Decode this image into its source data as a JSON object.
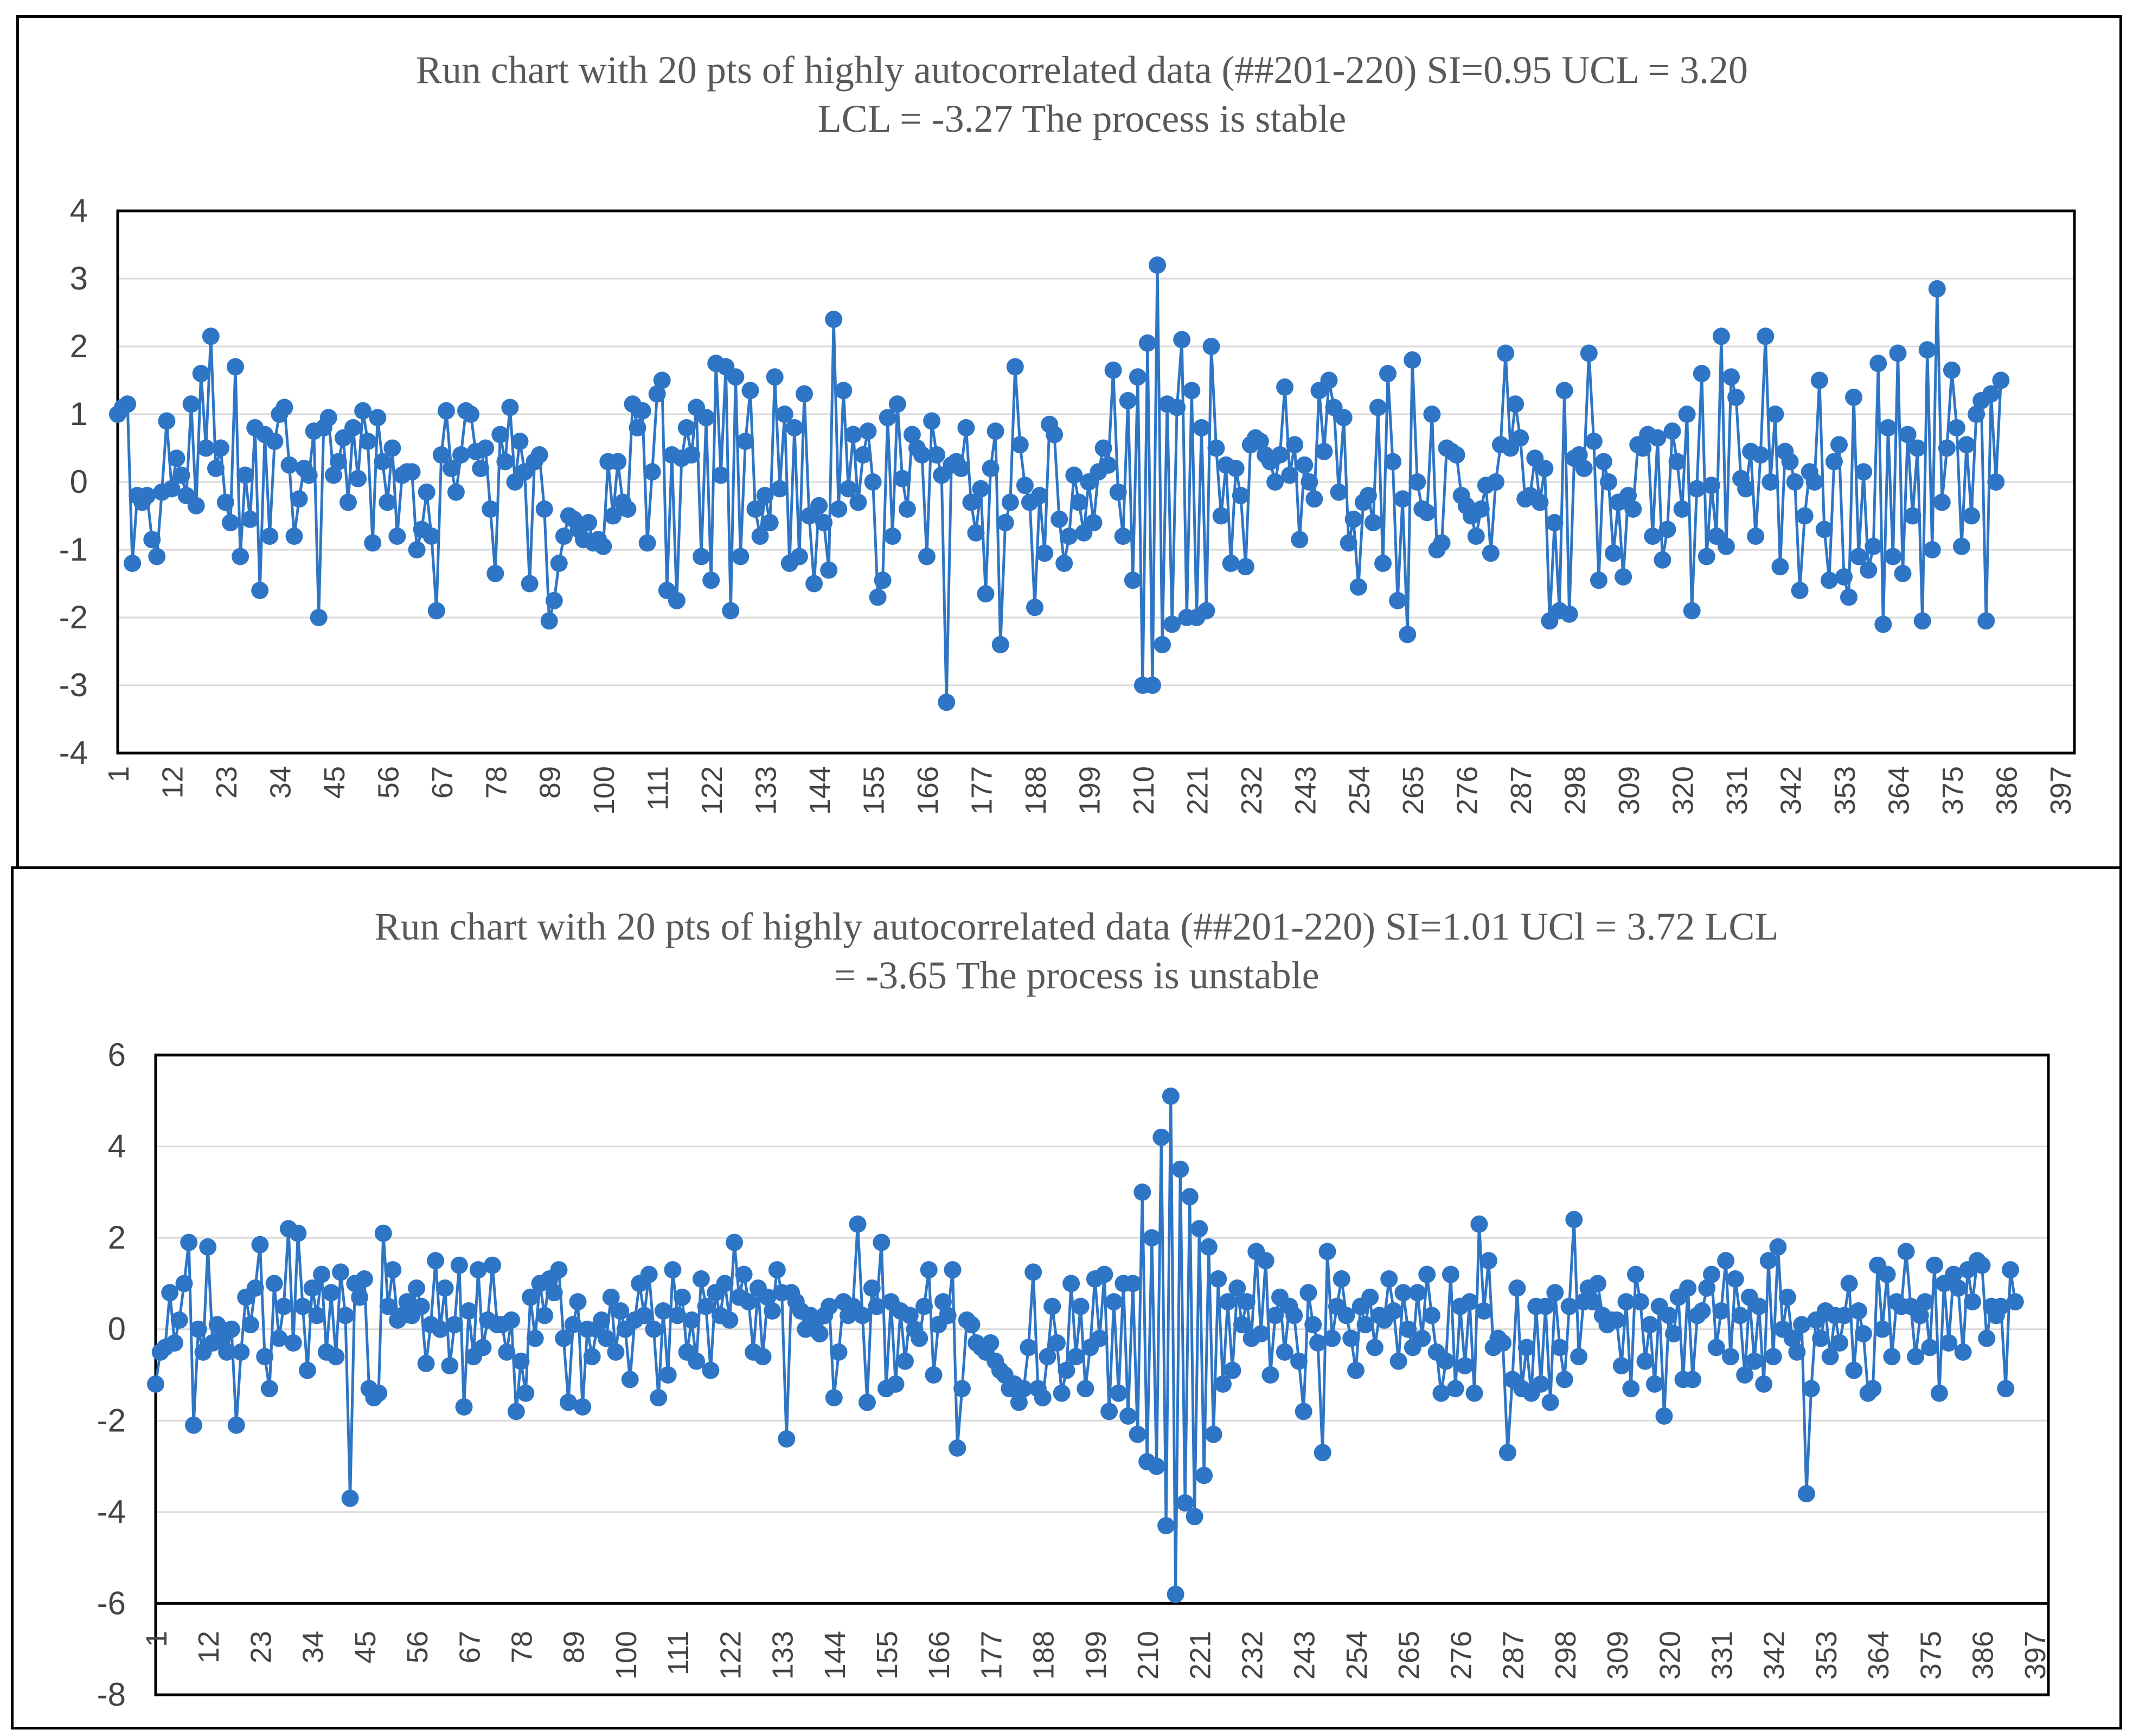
{
  "colors": {
    "series": "#2E75C6",
    "grid": "#d9d9d9",
    "frame": "#000000",
    "text": "#595959"
  },
  "chart_data": [
    {
      "type": "line",
      "title_lines": [
        "Run chart with 20 pts of highly  autocorrelated data (##201-220) SI=0.95 UCL = 3.20",
        "LCL = -3.27 The process is stable"
      ],
      "ylim": [
        -4,
        4
      ],
      "yticks": [
        4,
        3,
        2,
        1,
        0,
        -1,
        -2,
        -3,
        -4
      ],
      "xlim": [
        1,
        400
      ],
      "xticks": [
        1,
        12,
        23,
        34,
        45,
        56,
        67,
        78,
        89,
        100,
        111,
        122,
        133,
        144,
        155,
        166,
        177,
        188,
        199,
        210,
        221,
        232,
        243,
        254,
        265,
        276,
        287,
        298,
        309,
        320,
        331,
        342,
        353,
        364,
        375,
        386,
        397
      ],
      "grid": true,
      "marker": "circle",
      "series": [
        {
          "name": "",
          "values": [
            1.0,
            1.1,
            1.15,
            -1.2,
            -0.2,
            -0.3,
            -0.2,
            -0.85,
            -1.1,
            -0.15,
            0.9,
            -0.1,
            0.35,
            0.1,
            -0.2,
            1.15,
            -0.35,
            1.6,
            0.5,
            2.15,
            0.2,
            0.5,
            -0.3,
            -0.6,
            1.7,
            -1.1,
            0.1,
            -0.55,
            0.8,
            -1.6,
            0.7,
            -0.8,
            0.6,
            1.0,
            1.1,
            0.25,
            -0.8,
            -0.25,
            0.2,
            0.1,
            0.75,
            -2.0,
            0.8,
            0.95,
            0.1,
            0.3,
            0.65,
            -0.3,
            0.8,
            0.05,
            1.05,
            0.6,
            -0.9,
            0.95,
            0.3,
            -0.3,
            0.5,
            -0.8,
            0.1,
            0.15,
            0.15,
            -1.0,
            -0.7,
            -0.15,
            -0.8,
            -1.9,
            0.4,
            1.05,
            0.2,
            -0.15,
            0.4,
            1.05,
            1.0,
            0.45,
            0.2,
            0.5,
            -0.4,
            -1.35,
            0.7,
            0.3,
            1.1,
            0.0,
            0.6,
            0.15,
            -1.5,
            0.3,
            0.4,
            -0.4,
            -2.05,
            -1.75,
            -1.2,
            -0.8,
            -0.5,
            -0.55,
            -0.7,
            -0.85,
            -0.6,
            -0.9,
            -0.85,
            -0.95,
            0.3,
            -0.5,
            0.3,
            -0.3,
            -0.4,
            1.15,
            0.8,
            1.05,
            -0.9,
            0.15,
            1.3,
            1.5,
            -1.6,
            0.4,
            -1.75,
            0.35,
            0.8,
            0.4,
            1.1,
            -1.1,
            0.95,
            -1.45,
            1.75,
            0.1,
            1.7,
            -1.9,
            1.55,
            -1.1,
            0.6,
            1.35,
            -0.4,
            -0.8,
            -0.2,
            -0.6,
            1.55,
            -0.1,
            1.0,
            -1.2,
            0.8,
            -1.1,
            1.3,
            -0.5,
            -1.5,
            -0.35,
            -0.6,
            -1.3,
            2.4,
            -0.4,
            1.35,
            -0.1,
            0.7,
            -0.3,
            0.4,
            0.75,
            0.0,
            -1.7,
            -1.45,
            0.95,
            -0.8,
            1.15,
            0.05,
            -0.4,
            0.7,
            0.5,
            0.4,
            -1.1,
            0.9,
            0.4,
            0.1,
            -3.25,
            0.25,
            0.3,
            0.2,
            0.8,
            -0.3,
            -0.75,
            -0.1,
            -1.65,
            0.2,
            0.75,
            -2.4,
            -0.6,
            -0.3,
            1.7,
            0.55,
            -0.05,
            -0.3,
            -1.85,
            -0.2,
            -1.05,
            0.85,
            0.7,
            -0.55,
            -1.2,
            -0.8,
            0.1,
            -0.3,
            -0.75,
            0.0,
            -0.6,
            0.15,
            0.5,
            0.25,
            1.65,
            -0.15,
            -0.8,
            1.2,
            -1.45,
            1.55,
            -3.0,
            2.05,
            -3.0,
            3.2,
            -2.4,
            1.15,
            -2.1,
            1.1,
            2.1,
            -2.0,
            1.35,
            -2.0,
            0.8,
            -1.9,
            2.0,
            0.5,
            -0.5,
            0.25,
            -1.2,
            0.2,
            -0.2,
            -1.25,
            0.55,
            0.65,
            0.6,
            0.4,
            0.3,
            0.0,
            0.4,
            1.4,
            0.1,
            0.55,
            -0.85,
            0.25,
            0.0,
            -0.25,
            1.35,
            0.45,
            1.5,
            1.1,
            -0.15,
            0.95,
            -0.9,
            -0.55,
            -1.55,
            -0.3,
            -0.2,
            -0.6,
            1.1,
            -1.2,
            1.6,
            0.3,
            -1.75,
            -0.25,
            -2.25,
            1.8,
            0.0,
            -0.4,
            -0.45,
            1.0,
            -1.0,
            -0.9,
            0.5,
            0.45,
            0.4,
            -0.2,
            -0.35,
            -0.5,
            -0.8,
            -0.4,
            -0.05,
            -1.05,
            0.0,
            0.55,
            1.9,
            0.5,
            1.15,
            0.65,
            -0.25,
            -0.2,
            0.35,
            -0.3,
            0.2,
            -2.05,
            -0.6,
            -1.9,
            1.35,
            -1.95,
            0.35,
            0.4,
            0.2,
            1.9,
            0.6,
            -1.45,
            0.3,
            0.0,
            -1.05,
            -0.3,
            -1.4,
            -0.2,
            -0.4,
            0.55,
            0.5,
            0.7,
            -0.8,
            0.65,
            -1.15,
            -0.7,
            0.75,
            0.3,
            -0.4,
            1.0,
            -1.9,
            -0.1,
            1.6,
            -1.1,
            -0.05,
            -0.8,
            2.15,
            -0.95,
            1.55,
            1.25,
            0.05,
            -0.1,
            0.45,
            -0.8,
            0.4,
            2.15,
            0.0,
            1.0,
            -1.25,
            0.45,
            0.3,
            0.0,
            -1.6,
            -0.5,
            0.15,
            0.0,
            1.5,
            -0.7,
            -1.45,
            0.3,
            0.55,
            -1.4,
            -1.7,
            1.25,
            -1.1,
            0.15,
            -1.3,
            -0.95,
            1.75,
            -2.1,
            0.8,
            -1.1,
            1.9,
            -1.35,
            0.7,
            -0.5,
            0.5,
            -2.05,
            1.95,
            -1.0,
            2.85,
            -0.3,
            0.5,
            1.65,
            0.8,
            -0.95,
            0.55,
            -0.5,
            1.0,
            1.2,
            -2.05,
            1.3,
            0.0,
            1.5
          ]
        }
      ]
    },
    {
      "type": "line",
      "title_lines": [
        "Run chart with 20 pts of highly  autocorrelated data (##201-220) SI=1.01 UCl = 3.72   LCL",
        "= -3.65 The process is unstable"
      ],
      "ylim": [
        -8,
        6
      ],
      "yticks": [
        6,
        4,
        2,
        0,
        -2,
        -4,
        -6,
        -8
      ],
      "xlim": [
        1,
        400
      ],
      "xticks": [
        1,
        12,
        23,
        34,
        45,
        56,
        67,
        78,
        89,
        100,
        111,
        122,
        133,
        144,
        155,
        166,
        177,
        188,
        199,
        210,
        221,
        232,
        243,
        254,
        265,
        276,
        287,
        298,
        309,
        320,
        331,
        342,
        353,
        364,
        375,
        386,
        397
      ],
      "grid": true,
      "marker": "circle",
      "series": [
        {
          "name": "",
          "values": [
            -1.2,
            -0.5,
            -0.4,
            0.8,
            -0.3,
            0.2,
            1.0,
            1.9,
            -2.1,
            0.0,
            -0.5,
            1.8,
            -0.3,
            0.1,
            -0.2,
            -0.5,
            0.0,
            -2.1,
            -0.5,
            0.7,
            0.1,
            0.9,
            1.85,
            -0.6,
            -1.3,
            1.0,
            -0.2,
            0.5,
            2.2,
            -0.3,
            2.1,
            0.5,
            -0.9,
            0.9,
            0.3,
            1.2,
            -0.5,
            0.8,
            -0.6,
            1.25,
            0.3,
            -3.7,
            1.0,
            0.7,
            1.1,
            -1.3,
            -1.5,
            -1.4,
            2.1,
            0.5,
            1.3,
            0.2,
            0.3,
            0.6,
            0.3,
            0.9,
            0.5,
            -0.75,
            0.1,
            1.5,
            0.0,
            0.9,
            -0.8,
            0.1,
            1.4,
            -1.7,
            0.4,
            -0.6,
            1.3,
            -0.4,
            0.2,
            1.4,
            0.1,
            0.1,
            -0.5,
            0.2,
            -1.8,
            -0.7,
            -1.4,
            0.7,
            -0.2,
            1.0,
            0.3,
            1.1,
            0.8,
            1.3,
            -0.2,
            -1.6,
            0.1,
            0.6,
            -1.7,
            0.0,
            -0.6,
            0.0,
            0.2,
            -0.2,
            0.7,
            -0.5,
            0.4,
            0.0,
            -1.1,
            0.2,
            1.0,
            0.3,
            1.2,
            0.0,
            -1.5,
            0.4,
            -1.0,
            1.3,
            0.3,
            0.7,
            -0.5,
            0.2,
            -0.7,
            1.1,
            0.5,
            -0.9,
            0.8,
            0.3,
            1.0,
            0.2,
            1.9,
            0.7,
            1.2,
            0.6,
            -0.5,
            0.9,
            -0.6,
            0.7,
            0.4,
            1.3,
            0.8,
            -2.4,
            0.8,
            0.6,
            0.4,
            0.0,
            0.3,
            0.0,
            -0.1,
            0.3,
            0.5,
            -1.5,
            -0.5,
            0.6,
            0.3,
            0.5,
            2.3,
            0.3,
            -1.6,
            0.9,
            0.5,
            1.9,
            -1.3,
            0.6,
            -1.2,
            0.4,
            -0.7,
            0.3,
            0.0,
            -0.2,
            0.5,
            1.3,
            -1.0,
            0.1,
            0.6,
            0.3,
            1.3,
            -2.6,
            -1.3,
            0.2,
            0.1,
            -0.3,
            -0.4,
            -0.5,
            -0.3,
            -0.7,
            -0.9,
            -1.0,
            -1.3,
            -1.2,
            -1.6,
            -1.3,
            -0.4,
            1.25,
            -1.3,
            -1.5,
            -0.6,
            0.5,
            -0.3,
            -1.4,
            -0.9,
            1.0,
            -0.6,
            0.5,
            -1.3,
            -0.4,
            1.1,
            -0.2,
            1.2,
            -1.8,
            0.6,
            -1.4,
            1.0,
            -1.9,
            1.0,
            -2.3,
            3.0,
            -2.9,
            2.0,
            -3.0,
            4.2,
            -4.3,
            5.1,
            -5.8,
            3.5,
            -3.8,
            2.9,
            -4.1,
            2.2,
            -3.2,
            1.8,
            -2.3,
            1.1,
            -1.2,
            0.6,
            -0.9,
            0.9,
            0.1,
            0.6,
            -0.2,
            1.7,
            -0.1,
            1.5,
            -1.0,
            0.3,
            0.7,
            -0.5,
            0.5,
            0.3,
            -0.7,
            -1.8,
            0.8,
            0.1,
            -0.3,
            -2.7,
            1.7,
            -0.2,
            0.5,
            1.1,
            0.3,
            -0.2,
            -0.9,
            0.5,
            0.1,
            0.7,
            -0.4,
            0.3,
            0.2,
            1.1,
            0.4,
            -0.7,
            0.8,
            0.0,
            -0.4,
            0.8,
            -0.2,
            1.2,
            0.3,
            -0.5,
            -1.4,
            -0.7,
            1.2,
            -1.3,
            0.5,
            -0.8,
            0.6,
            -1.4,
            2.3,
            0.4,
            1.5,
            -0.4,
            -0.2,
            -0.3,
            -2.7,
            -1.1,
            0.9,
            -1.3,
            -0.4,
            -1.4,
            0.5,
            -1.2,
            0.5,
            -1.6,
            0.8,
            -0.4,
            -1.1,
            0.5,
            2.4,
            -0.6,
            0.6,
            0.9,
            0.6,
            1.0,
            0.3,
            0.1,
            0.2,
            0.2,
            -0.8,
            0.6,
            -1.3,
            1.2,
            0.6,
            -0.7,
            0.1,
            -1.2,
            0.5,
            -1.9,
            0.3,
            -0.1,
            0.7,
            -1.1,
            0.9,
            -1.1,
            0.3,
            0.4,
            0.9,
            1.2,
            -0.4,
            0.4,
            1.5,
            -0.6,
            1.1,
            0.3,
            -1.0,
            0.7,
            -0.7,
            0.5,
            -1.2,
            1.5,
            -0.6,
            1.8,
            0.0,
            0.7,
            -0.2,
            -0.5,
            0.1,
            -3.6,
            -1.3,
            0.2,
            -0.2,
            0.4,
            -0.6,
            0.3,
            -0.3,
            0.3,
            1.0,
            -0.9,
            0.4,
            -0.1,
            -1.4,
            -1.3,
            1.4,
            0.0,
            1.2,
            -0.6,
            0.6,
            0.5,
            1.7,
            0.5,
            -0.6,
            0.3,
            0.6,
            -0.4,
            1.4,
            -1.4,
            1.0,
            -0.3,
            1.2,
            0.9,
            -0.5,
            1.3,
            0.6,
            1.5,
            1.4,
            -0.2,
            0.5,
            0.3,
            0.5,
            -1.3,
            1.3,
            0.6
          ]
        }
      ]
    }
  ]
}
